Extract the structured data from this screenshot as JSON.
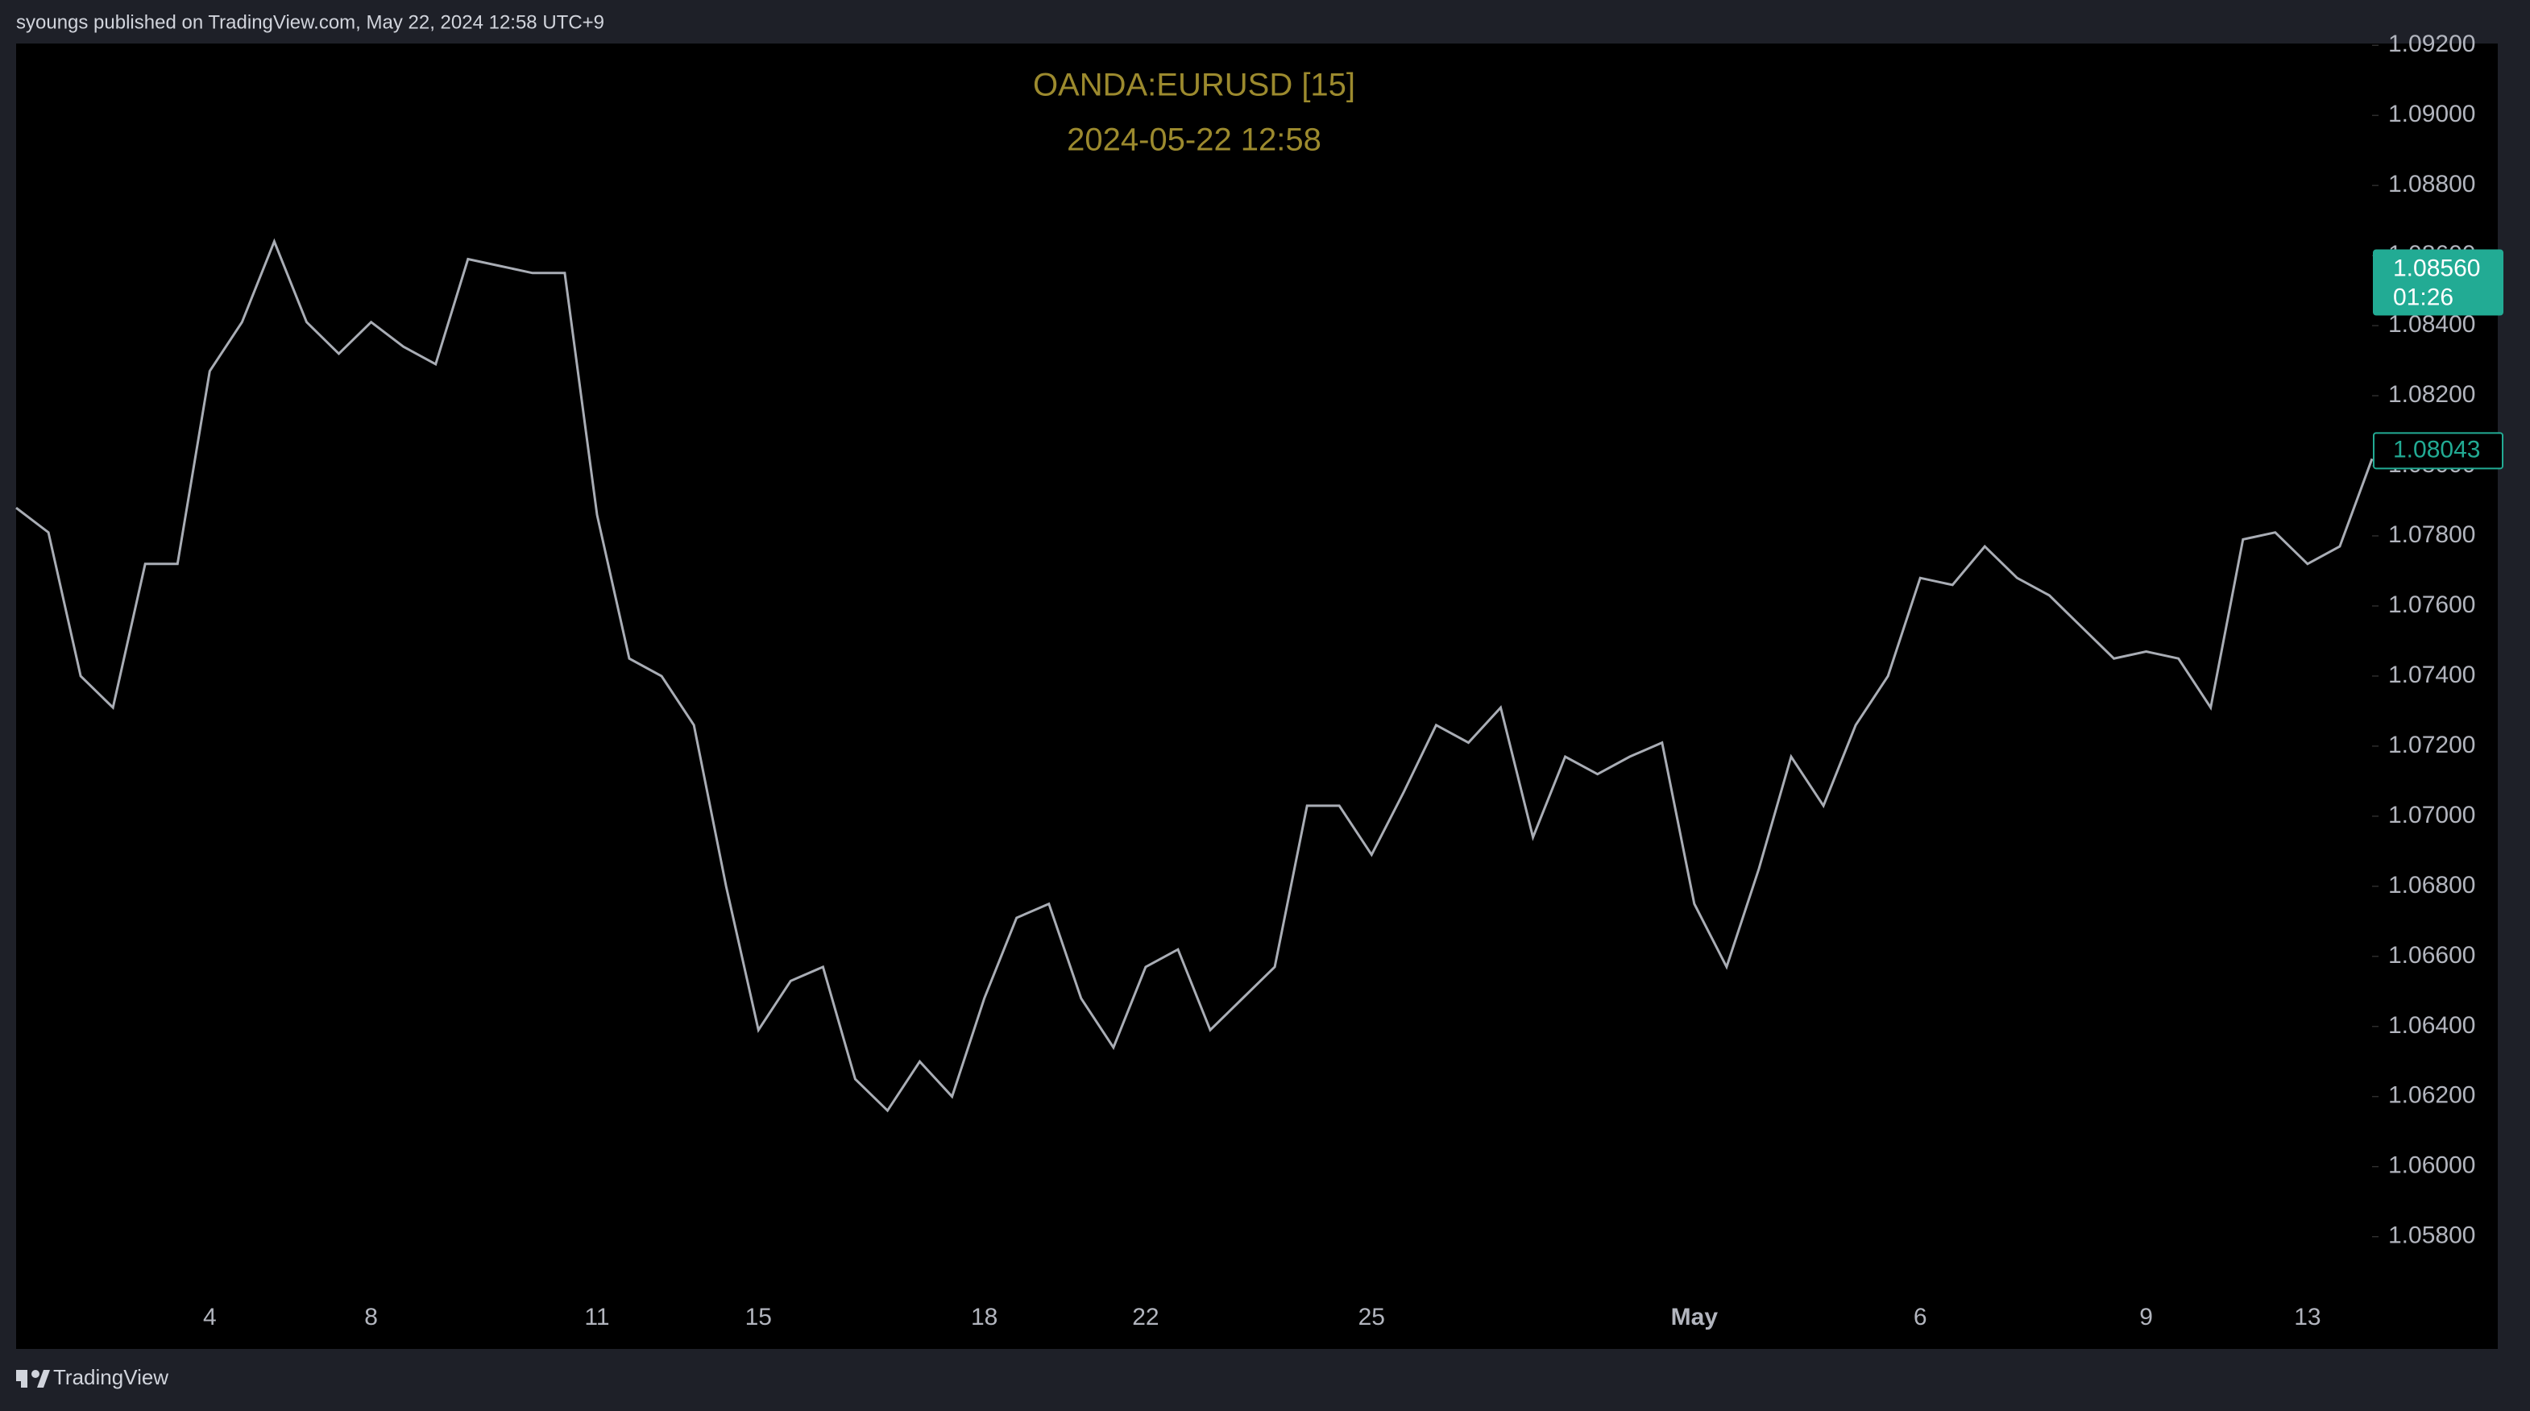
{
  "header": {
    "text": "syoungs published on TradingView.com, May 22, 2024 12:58 UTC+9"
  },
  "footer": {
    "brand": "TradingView"
  },
  "chart_data": {
    "type": "line",
    "title": "OANDA:EURUSD  [15]",
    "subtitle": "2024-05-22  12:58",
    "categories": [
      null,
      null,
      null,
      null,
      null,
      null,
      "4",
      null,
      null,
      null,
      null,
      "8",
      null,
      null,
      null,
      null,
      null,
      null,
      "11",
      null,
      null,
      null,
      null,
      "15",
      null,
      null,
      null,
      null,
      null,
      null,
      "18",
      null,
      null,
      null,
      null,
      "22",
      null,
      null,
      null,
      null,
      null,
      null,
      "25",
      null,
      null,
      null,
      null,
      null,
      null,
      null,
      null,
      null,
      "May",
      null,
      null,
      null,
      null,
      null,
      null,
      "6",
      null,
      null,
      null,
      null,
      null,
      null,
      "9",
      null,
      null,
      null,
      null,
      "13",
      null,
      null
    ],
    "series": [
      {
        "color": "#a9adb5",
        "values": [
          1.0788,
          1.0781,
          1.074,
          1.0731,
          1.0772,
          1.0772,
          1.0827,
          1.0841,
          1.0864,
          1.0841,
          1.0832,
          1.0841,
          1.0834,
          1.0829,
          1.0859,
          1.0857,
          1.0855,
          1.0855,
          1.0786,
          1.0745,
          1.074,
          1.0726,
          1.068,
          1.0639,
          1.0653,
          1.0657,
          1.0625,
          1.0616,
          1.063,
          1.062,
          1.0648,
          1.0671,
          1.0675,
          1.0648,
          1.0634,
          1.0657,
          1.0662,
          1.0639,
          1.0648,
          1.0657,
          1.0703,
          1.0703,
          1.0689,
          1.0707,
          1.0726,
          1.0721,
          1.0731,
          1.0694,
          1.0717,
          1.0712,
          1.0717,
          1.0721,
          1.0675,
          1.0657,
          1.0685,
          1.0717,
          1.0703,
          1.0726,
          1.074,
          1.0768,
          1.0766,
          1.0777,
          1.0768,
          1.0763,
          1.0754,
          1.0745,
          1.0747,
          1.0745,
          1.0731,
          1.0779,
          1.0781,
          1.0772,
          1.0777,
          1.0802
        ]
      }
    ],
    "ylim": [
      1.0565,
      1.09205
    ],
    "yticks": [
      {
        "value": 1.092,
        "label": "1.09200"
      },
      {
        "value": 1.09,
        "label": "1.09000"
      },
      {
        "value": 1.088,
        "label": "1.08800"
      },
      {
        "value": 1.086,
        "label": "1.08600"
      },
      {
        "value": 1.084,
        "label": "1.08400"
      },
      {
        "value": 1.082,
        "label": "1.08200"
      },
      {
        "value": 1.08,
        "label": "1.08000"
      },
      {
        "value": 1.078,
        "label": "1.07800"
      },
      {
        "value": 1.076,
        "label": "1.07600"
      },
      {
        "value": 1.074,
        "label": "1.07400"
      },
      {
        "value": 1.072,
        "label": "1.07200"
      },
      {
        "value": 1.07,
        "label": "1.07000"
      },
      {
        "value": 1.068,
        "label": "1.06800"
      },
      {
        "value": 1.066,
        "label": "1.06600"
      },
      {
        "value": 1.064,
        "label": "1.06400"
      },
      {
        "value": 1.062,
        "label": "1.06200"
      },
      {
        "value": 1.06,
        "label": "1.06000"
      },
      {
        "value": 1.058,
        "label": "1.05800"
      }
    ],
    "price_tags": [
      {
        "value": 1.0856,
        "label": "1.08560",
        "countdown": "01:26",
        "filled": true
      },
      {
        "value": 1.08043,
        "filled": false
      }
    ],
    "tag_color": "#22ab94",
    "grid": false
  }
}
